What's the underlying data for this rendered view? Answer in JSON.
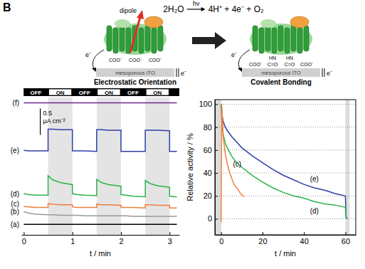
{
  "diagram": {
    "panel_label": "B",
    "reaction": {
      "reactants": "2H₂O",
      "light": "hν",
      "products": "4H⁺ + 4e⁻ + O₂"
    },
    "schemes": [
      {
        "title": "Electrostatic Orientation",
        "annotation": "dipole",
        "electrode": "mesoporous ITO",
        "electrons": [
          "e⁻",
          "e⁻"
        ],
        "groups": [
          "COO⁻",
          "COO⁻",
          "COO⁻"
        ]
      },
      {
        "title": "Covalent Bonding",
        "electrode": "mesoporous ITO",
        "electrons": [
          "e⁻",
          "e⁻"
        ],
        "linkers": [
          "HN",
          "HN"
        ],
        "groups": [
          "COO⁻",
          "C=O",
          "C=O",
          "COO⁻"
        ]
      }
    ]
  },
  "chart_data": [
    {
      "type": "line",
      "xlabel": "t / min",
      "tick_labels": "x",
      "xlim": [
        -0.05,
        3.2
      ],
      "xticks": [
        0,
        1,
        2,
        3
      ],
      "ylim": [
        -0.2,
        2.4
      ],
      "light": [
        {
          "label": "OFF",
          "start": 0,
          "end": 0.5
        },
        {
          "label": "ON",
          "start": 0.5,
          "end": 1
        },
        {
          "label": "OFF",
          "start": 1,
          "end": 1.5
        },
        {
          "label": "ON",
          "start": 1.5,
          "end": 2
        },
        {
          "label": "OFF",
          "start": 2,
          "end": 2.5
        },
        {
          "label": "ON",
          "start": 2.5,
          "end": 3
        }
      ],
      "scale_bar": {
        "value": 0.5,
        "label": "0.5 μA cm⁻²"
      },
      "x": [
        0,
        0.1,
        0.25,
        0.5,
        0.5,
        0.6,
        0.75,
        1,
        1,
        1.1,
        1.25,
        1.5,
        1.5,
        1.6,
        1.75,
        2,
        2,
        2.1,
        2.25,
        2.5,
        2.5,
        2.6,
        2.75,
        3,
        3,
        3.1,
        3.15
      ],
      "series": [
        {
          "name": "(a)",
          "color": "#000000",
          "values": [
            0,
            0,
            0,
            0,
            0,
            0,
            0,
            0,
            0,
            0,
            0,
            0,
            0,
            0,
            0,
            0,
            0,
            0,
            0,
            0,
            0,
            0,
            0,
            0,
            0,
            0,
            0
          ]
        },
        {
          "name": "(b)",
          "color": "#999999",
          "values": [
            0.24,
            0.21,
            0.19,
            0.18,
            0.18,
            0.18,
            0.17,
            0.17,
            0.17,
            0.17,
            0.16,
            0.16,
            0.16,
            0.16,
            0.16,
            0.16,
            0.16,
            0.16,
            0.15,
            0.15,
            0.15,
            0.15,
            0.15,
            0.15,
            0.15,
            0.15,
            0.15
          ]
        },
        {
          "name": "(c)",
          "color": "#f07f3c",
          "values": [
            0.34,
            0.33,
            0.32,
            0.32,
            0.39,
            0.38,
            0.37,
            0.37,
            0.33,
            0.32,
            0.32,
            0.32,
            0.38,
            0.37,
            0.37,
            0.36,
            0.32,
            0.32,
            0.32,
            0.31,
            0.37,
            0.37,
            0.36,
            0.36,
            0.31,
            0.31,
            0.31
          ]
        },
        {
          "name": "(d)",
          "color": "#2db34a",
          "values": [
            0.58,
            0.56,
            0.55,
            0.55,
            0.92,
            0.84,
            0.79,
            0.75,
            0.58,
            0.56,
            0.55,
            0.54,
            0.85,
            0.79,
            0.75,
            0.72,
            0.56,
            0.55,
            0.53,
            0.52,
            0.83,
            0.77,
            0.73,
            0.7,
            0.53,
            0.52,
            0.52
          ]
        },
        {
          "name": "(e)",
          "color": "#2e3fa8",
          "values": [
            1.4,
            1.39,
            1.39,
            1.39,
            1.8,
            1.8,
            1.79,
            1.79,
            1.39,
            1.39,
            1.39,
            1.38,
            1.79,
            1.79,
            1.78,
            1.78,
            1.38,
            1.38,
            1.38,
            1.38,
            1.78,
            1.78,
            1.78,
            1.77,
            1.38,
            1.38,
            1.38
          ]
        },
        {
          "name": "(f)",
          "color": "#6a2b8a",
          "values": [
            2.3,
            2.3,
            2.3,
            2.3,
            2.3,
            2.3,
            2.3,
            2.3,
            2.3,
            2.3,
            2.3,
            2.3,
            2.3,
            2.3,
            2.3,
            2.3,
            2.3,
            2.3,
            2.3,
            2.3,
            2.3,
            2.3,
            2.3,
            2.3,
            2.3,
            2.3,
            2.3
          ]
        }
      ]
    },
    {
      "type": "line",
      "xlabel": "t / min",
      "ylabel": "Relative activity / %",
      "grid": "y",
      "xlim": [
        -3,
        65
      ],
      "xticks": [
        0,
        20,
        40,
        60
      ],
      "ylim": [
        -14,
        104
      ],
      "yticks": [
        0,
        20,
        40,
        60,
        80,
        100
      ],
      "off_periods": [
        {
          "start": -3,
          "end": 0
        },
        {
          "start": 60,
          "end": 62
        }
      ],
      "series": [
        {
          "name": "(e)",
          "color": "#2e3fa8",
          "x": [
            0,
            0.5,
            1,
            2,
            3,
            5,
            7,
            10,
            15,
            20,
            25,
            30,
            35,
            40,
            45,
            50,
            55,
            60,
            60.3,
            60.8
          ],
          "values": [
            100,
            90,
            85,
            80,
            77,
            72,
            68,
            62,
            55,
            49,
            43,
            38,
            34,
            30,
            27,
            25,
            22,
            20,
            2,
            0
          ]
        },
        {
          "name": "(d)",
          "color": "#2db34a",
          "x": [
            0,
            0.5,
            1,
            2,
            3,
            5,
            7,
            10,
            15,
            20,
            25,
            30,
            35,
            40,
            45,
            50,
            55,
            60,
            60.3,
            60.8
          ],
          "values": [
            100,
            80,
            74,
            66,
            62,
            55,
            50,
            45,
            38,
            32,
            27,
            23,
            20,
            18,
            15,
            13,
            12,
            10,
            1,
            0
          ]
        },
        {
          "name": "(c)",
          "color": "#f07f3c",
          "x": [
            0,
            0.3,
            1,
            2,
            3,
            4,
            5,
            6,
            7,
            8,
            9,
            10,
            11
          ],
          "values": [
            -3,
            100,
            72,
            57,
            48,
            41,
            36,
            31,
            28,
            26,
            23,
            21,
            19
          ]
        }
      ]
    }
  ]
}
